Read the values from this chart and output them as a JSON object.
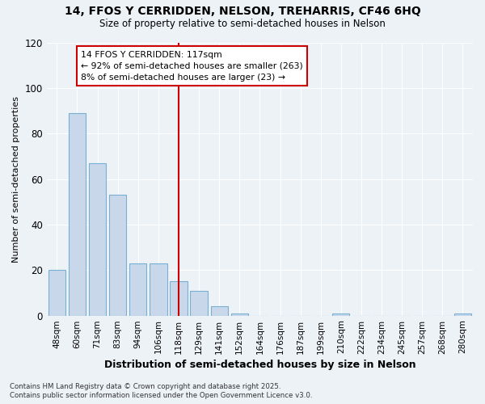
{
  "title1": "14, FFOS Y CERRIDDEN, NELSON, TREHARRIS, CF46 6HQ",
  "title2": "Size of property relative to semi-detached houses in Nelson",
  "xlabel": "Distribution of semi-detached houses by size in Nelson",
  "ylabel": "Number of semi-detached properties",
  "categories": [
    "48sqm",
    "60sqm",
    "71sqm",
    "83sqm",
    "94sqm",
    "106sqm",
    "118sqm",
    "129sqm",
    "141sqm",
    "152sqm",
    "164sqm",
    "176sqm",
    "187sqm",
    "199sqm",
    "210sqm",
    "222sqm",
    "234sqm",
    "245sqm",
    "257sqm",
    "268sqm",
    "280sqm"
  ],
  "values": [
    20,
    89,
    67,
    53,
    23,
    23,
    15,
    11,
    4,
    1,
    0,
    0,
    0,
    0,
    1,
    0,
    0,
    0,
    0,
    0,
    1
  ],
  "bar_color": "#c8d8ea",
  "bar_edge_color": "#7aafd4",
  "vline_index": 6,
  "vline_color": "#cc0000",
  "annotation_title": "14 FFOS Y CERRIDDEN: 117sqm",
  "annotation_line1": "← 92% of semi-detached houses are smaller (263)",
  "annotation_line2": "8% of semi-detached houses are larger (23) →",
  "annotation_box_color": "#cc0000",
  "ylim": [
    0,
    120
  ],
  "yticks": [
    0,
    20,
    40,
    60,
    80,
    100,
    120
  ],
  "background_color": "#edf2f7",
  "grid_color": "#ffffff",
  "footer1": "Contains HM Land Registry data © Crown copyright and database right 2025.",
  "footer2": "Contains public sector information licensed under the Open Government Licence v3.0."
}
